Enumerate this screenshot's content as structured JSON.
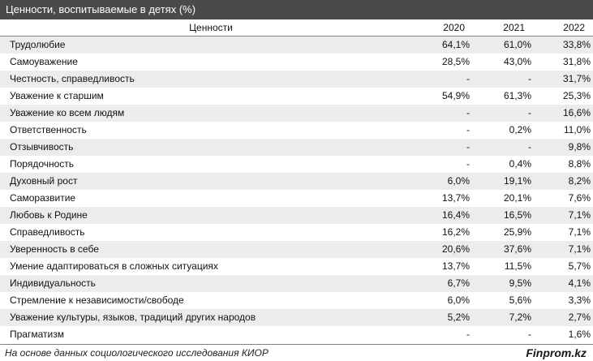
{
  "title": "Ценности, воспитываемые в детях (%)",
  "header": {
    "name": "Ценности",
    "y2020": "2020",
    "y2021": "2021",
    "y2022": "2022"
  },
  "rows": [
    {
      "name": "Трудолюбие",
      "y2020": "64,1%",
      "y2021": "61,0%",
      "y2022": "33,8%"
    },
    {
      "name": "Самоуважение",
      "y2020": "28,5%",
      "y2021": "43,0%",
      "y2022": "31,8%"
    },
    {
      "name": "Честность, справедливость",
      "y2020": "-",
      "y2021": "-",
      "y2022": "31,7%"
    },
    {
      "name": "Уважение к старшим",
      "y2020": "54,9%",
      "y2021": "61,3%",
      "y2022": "25,3%"
    },
    {
      "name": "Уважение ко всем людям",
      "y2020": "-",
      "y2021": "-",
      "y2022": "16,6%"
    },
    {
      "name": "Ответственность",
      "y2020": "-",
      "y2021": "0,2%",
      "y2022": "11,0%"
    },
    {
      "name": "Отзывчивость",
      "y2020": "-",
      "y2021": "-",
      "y2022": "9,8%"
    },
    {
      "name": "Порядочность",
      "y2020": "-",
      "y2021": "0,4%",
      "y2022": "8,8%"
    },
    {
      "name": "Духовный рост",
      "y2020": "6,0%",
      "y2021": "19,1%",
      "y2022": "8,2%"
    },
    {
      "name": "Саморазвитие",
      "y2020": "13,7%",
      "y2021": "20,1%",
      "y2022": "7,6%"
    },
    {
      "name": "Любовь к Родине",
      "y2020": "16,4%",
      "y2021": "16,5%",
      "y2022": "7,1%"
    },
    {
      "name": "Справедливость",
      "y2020": "16,2%",
      "y2021": "25,9%",
      "y2022": "7,1%"
    },
    {
      "name": "Уверенность в себе",
      "y2020": "20,6%",
      "y2021": "37,6%",
      "y2022": "7,1%"
    },
    {
      "name": "Умение адаптироваться в сложных ситуациях",
      "y2020": "13,7%",
      "y2021": "11,5%",
      "y2022": "5,7%"
    },
    {
      "name": "Индивидуальность",
      "y2020": "6,7%",
      "y2021": "9,5%",
      "y2022": "4,1%"
    },
    {
      "name": "Стремление к независимости/свободе",
      "y2020": "6,0%",
      "y2021": "5,6%",
      "y2022": "3,3%"
    },
    {
      "name": "Уважение культуры, языков, традиций других народов",
      "y2020": "5,2%",
      "y2021": "7,2%",
      "y2022": "2,7%"
    },
    {
      "name": "Прагматизм",
      "y2020": "-",
      "y2021": "-",
      "y2022": "1,6%"
    }
  ],
  "footer": {
    "source": "На основе данных социологического исследования КИОР",
    "brand": "Finprom.kz"
  }
}
